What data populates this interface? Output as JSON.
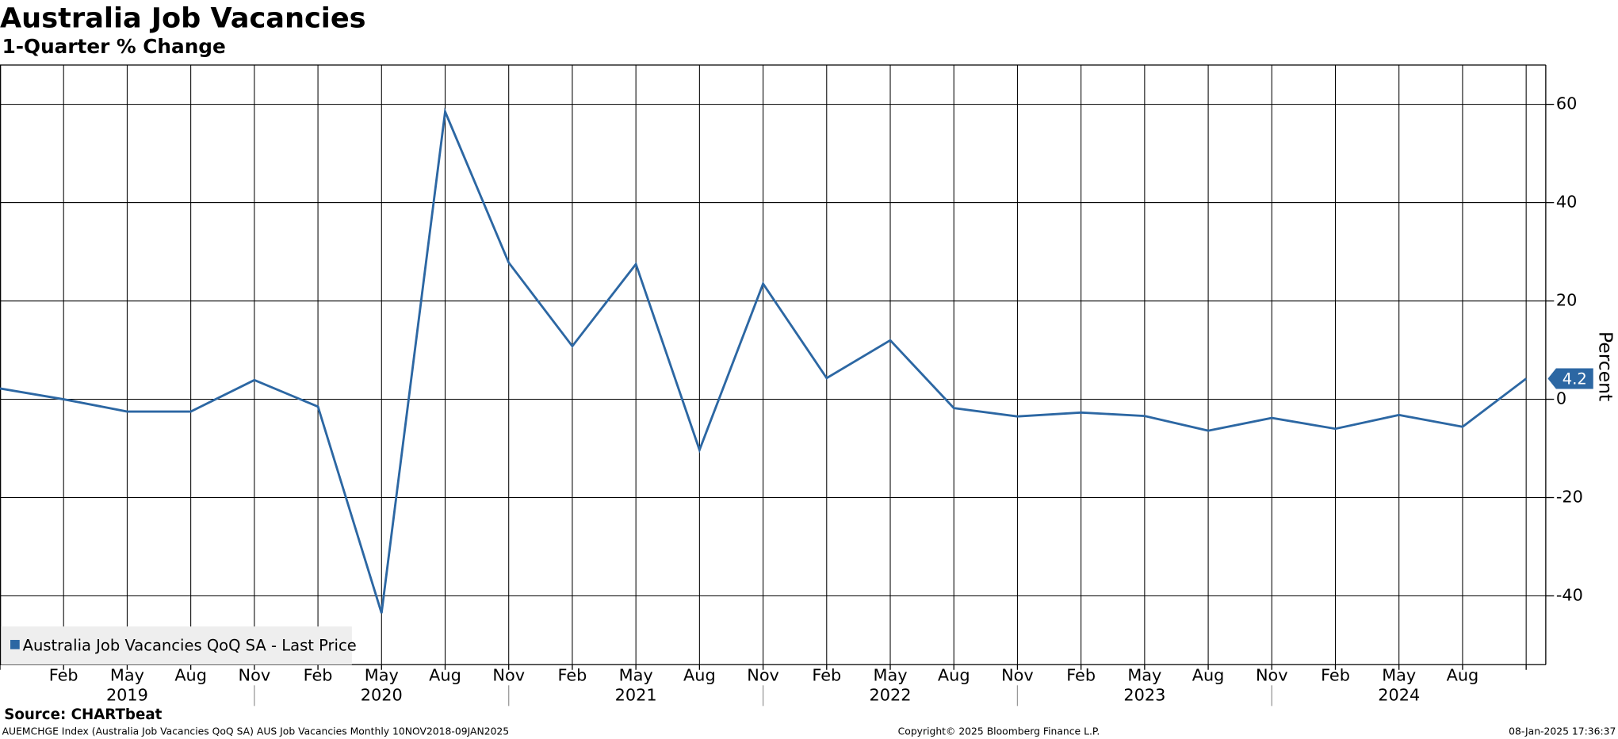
{
  "chart_data": {
    "type": "line",
    "title": "Australia Job Vacancies",
    "subtitle": "1-Quarter % Change",
    "y_axis_label": "Percent",
    "categories": [
      null,
      "Feb",
      "May",
      "Aug",
      "Nov",
      "Feb",
      "May",
      "Aug",
      "Nov",
      "Feb",
      "May",
      "Aug",
      "Nov",
      "Feb",
      "May",
      "Aug",
      "Nov",
      "Feb",
      "May",
      "Aug",
      "Nov",
      "Feb",
      "May",
      "Aug",
      null
    ],
    "years": [
      "2019",
      "2020",
      "2021",
      "2022",
      "2023",
      "2024"
    ],
    "series": [
      {
        "name": "Australia Job Vacancies QoQ SA - Last Price",
        "color": "#2c67a3",
        "values": [
          2.2,
          0,
          -2.5,
          -2.5,
          3.9,
          -1.5,
          -43.5,
          58.5,
          27.8,
          10.8,
          27.5,
          -10.3,
          23.5,
          4.3,
          12,
          -1.8,
          -3.5,
          -2.7,
          -3.4,
          -6.4,
          -3.8,
          -6,
          -3.2,
          -5.6,
          4.2
        ]
      }
    ],
    "ylim": [
      -54,
      68
    ],
    "yticks": [
      -40,
      -20,
      0,
      20,
      40,
      60
    ],
    "grid": true,
    "legend": "bottom-left",
    "source": "Source: CHARTbeat",
    "footer_left": "AUEMCHGE Index (Australia Job Vacancies QoQ SA) AUS Job Vacancies  Monthly 10NOV2018-09JAN2025",
    "footer_center": "Copyright© 2025 Bloomberg Finance L.P.",
    "footer_right": "08-Jan-2025 17:36:37"
  }
}
